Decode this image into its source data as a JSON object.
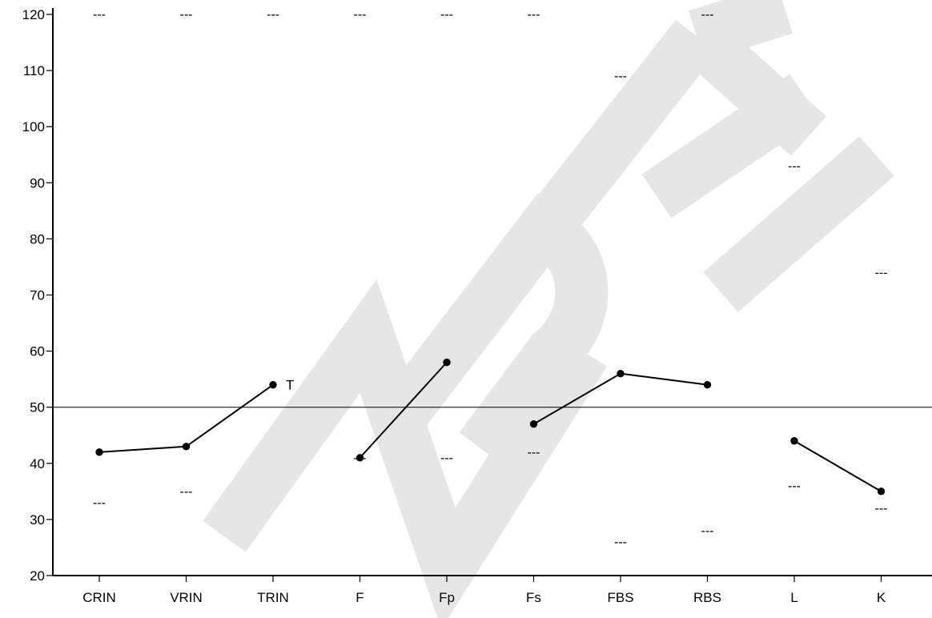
{
  "chart_data": {
    "type": "line",
    "title": "",
    "xlabel": "",
    "ylabel": "",
    "ylim": [
      20,
      120
    ],
    "yticks": [
      20,
      30,
      40,
      50,
      60,
      70,
      80,
      90,
      100,
      110,
      120
    ],
    "categories": [
      "CRIN",
      "VRIN",
      "TRIN",
      "F",
      "Fp",
      "Fs",
      "FBS",
      "RBS",
      "L",
      "K"
    ],
    "reference_line": 50,
    "segments": [
      {
        "points": [
          {
            "x": "CRIN",
            "y": 42
          },
          {
            "x": "VRIN",
            "y": 43
          },
          {
            "x": "TRIN",
            "y": 54
          }
        ]
      },
      {
        "points": [
          {
            "x": "F",
            "y": 41
          },
          {
            "x": "Fp",
            "y": 58
          }
        ]
      },
      {
        "points": [
          {
            "x": "Fs",
            "y": 47
          },
          {
            "x": "FBS",
            "y": 56
          },
          {
            "x": "RBS",
            "y": 54
          }
        ]
      },
      {
        "points": [
          {
            "x": "L",
            "y": 44
          },
          {
            "x": "K",
            "y": 35
          }
        ]
      }
    ],
    "annotations": [
      {
        "text": "T",
        "x": "TRIN",
        "y": 54
      }
    ],
    "range_marks": {
      "text": "---",
      "upper": [
        120,
        120,
        120,
        120,
        120,
        120,
        109,
        120,
        93,
        74
      ],
      "lower": [
        33,
        35,
        null,
        41,
        41,
        42,
        26,
        28,
        36,
        32
      ]
    },
    "grid": false,
    "watermark": {
      "text": "SAMPLE"
    }
  }
}
